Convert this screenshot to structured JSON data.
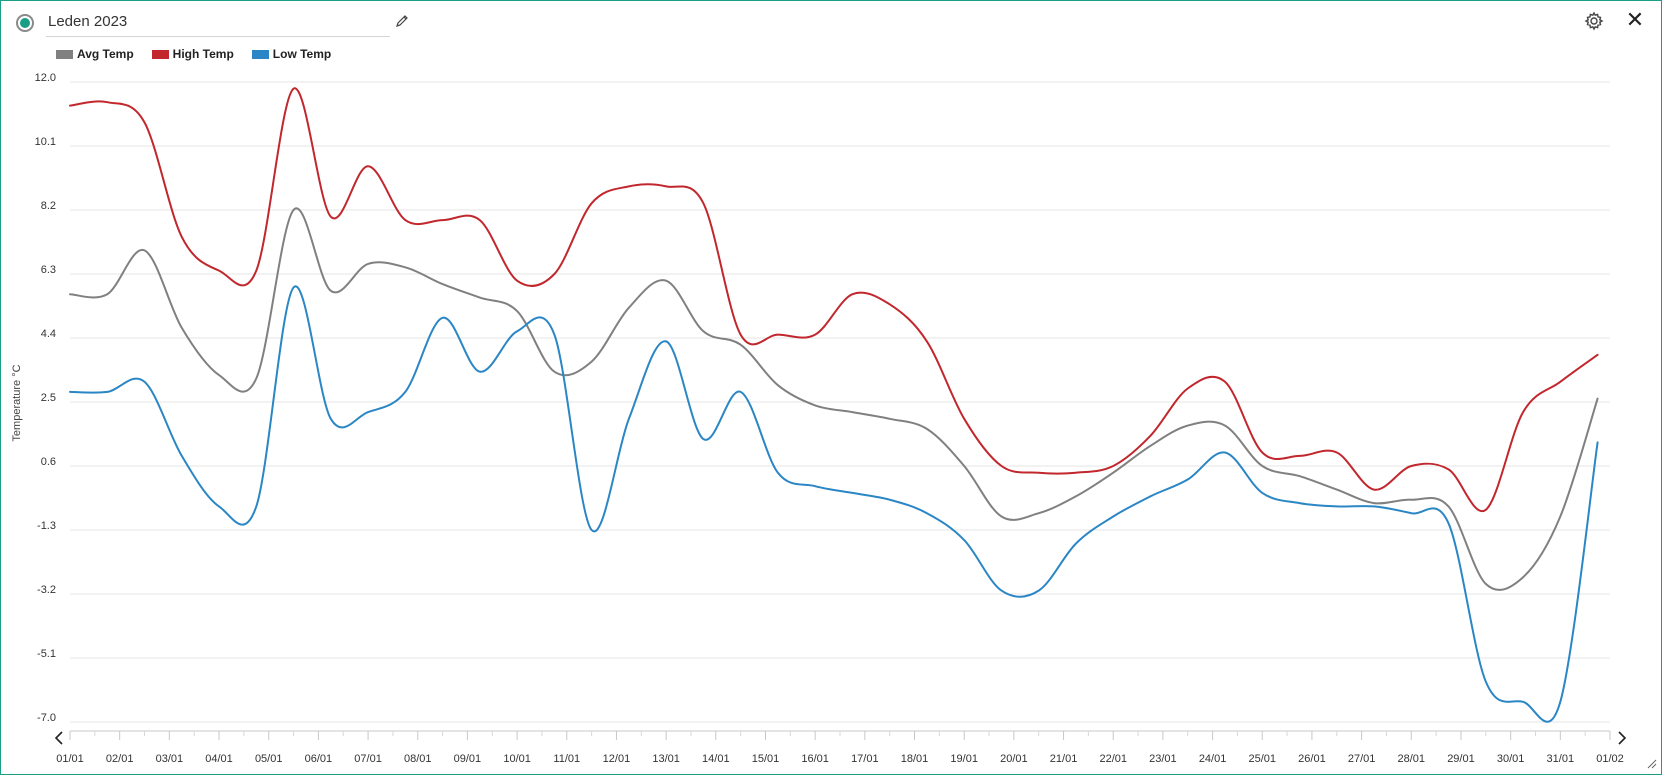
{
  "window": {
    "title": "Leden 2023",
    "status_color": "#1a9e86",
    "icons": [
      "status-dot-icon",
      "pencil-icon",
      "gear-icon",
      "close-icon",
      "chevron-left-icon",
      "chevron-right-icon",
      "resize-handle-icon"
    ],
    "close_glyph": "✕"
  },
  "chart_data": {
    "type": "line",
    "title": "",
    "xlabel": "",
    "ylabel": "Temperature °C",
    "x_tick_labels": [
      "01/01",
      "02/01",
      "03/01",
      "04/01",
      "05/01",
      "06/01",
      "07/01",
      "08/01",
      "09/01",
      "10/01",
      "11/01",
      "12/01",
      "13/01",
      "14/01",
      "15/01",
      "16/01",
      "17/01",
      "18/01",
      "19/01",
      "20/01",
      "21/01",
      "22/01",
      "23/01",
      "24/01",
      "25/01",
      "26/01",
      "27/01",
      "28/01",
      "29/01",
      "30/01",
      "31/01",
      "01/02"
    ],
    "y_ticks": [
      12.0,
      10.1,
      8.2,
      6.3,
      4.4,
      2.5,
      0.6,
      -1.3,
      -3.2,
      -5.1,
      -7.0
    ],
    "y_tick_labels": [
      "12.0",
      "10.1",
      "8.2",
      "6.3",
      "4.4",
      "2.5",
      "0.6",
      "-1.3",
      "-3.2",
      "-5.1",
      "-7.0"
    ],
    "ylim": [
      -7.0,
      12.0
    ],
    "grid": "horizontal",
    "legend_position": "top-left",
    "series": [
      {
        "name": "Avg Temp",
        "color": "#808080",
        "x": [
          "01/01",
          "01/01 18:00",
          "02/01 12:00",
          "03/01 06:00",
          "04/01",
          "04/01 18:00",
          "05/01 12:00",
          "06/01 06:00",
          "07/01",
          "07/01 18:00",
          "08/01 12:00",
          "09/01 06:00",
          "10/01",
          "10/01 18:00",
          "11/01 12:00",
          "12/01 06:00",
          "13/01",
          "13/01 18:00",
          "14/01 12:00",
          "15/01 06:00",
          "16/01",
          "16/01 18:00",
          "17/01 12:00",
          "18/01 06:00",
          "19/01",
          "19/01 18:00",
          "20/01 12:00",
          "21/01 06:00",
          "22/01",
          "22/01 18:00",
          "23/01 12:00",
          "24/01 06:00",
          "25/01",
          "25/01 18:00",
          "26/01 12:00",
          "27/01 06:00",
          "28/01",
          "28/01 18:00",
          "29/01 12:00",
          "30/01 06:00",
          "31/01",
          "31/01 18:00"
        ],
        "y": [
          5.7,
          5.7,
          7.0,
          4.7,
          3.3,
          3.2,
          8.2,
          5.8,
          6.6,
          6.5,
          6.0,
          5.6,
          5.2,
          3.4,
          3.7,
          5.3,
          6.1,
          4.6,
          4.2,
          3.0,
          2.4,
          2.2,
          2.0,
          1.7,
          0.6,
          -0.9,
          -0.8,
          -0.3,
          0.4,
          1.2,
          1.8,
          1.8,
          0.6,
          0.3,
          -0.1,
          -0.5,
          -0.4,
          -0.6,
          -2.9,
          -2.7,
          -0.9,
          2.6
        ]
      },
      {
        "name": "High Temp",
        "color": "#c1272d",
        "x": [
          "01/01",
          "01/01 18:00",
          "02/01 12:00",
          "03/01 06:00",
          "04/01",
          "04/01 18:00",
          "05/01 12:00",
          "06/01 06:00",
          "07/01",
          "07/01 18:00",
          "08/01 12:00",
          "09/01 06:00",
          "10/01",
          "10/01 18:00",
          "11/01 12:00",
          "12/01 06:00",
          "13/01",
          "13/01 18:00",
          "14/01 12:00",
          "15/01 06:00",
          "16/01",
          "16/01 18:00",
          "17/01 12:00",
          "18/01 06:00",
          "19/01",
          "19/01 18:00",
          "20/01 12:00",
          "21/01 06:00",
          "22/01",
          "22/01 18:00",
          "23/01 12:00",
          "24/01 06:00",
          "25/01",
          "25/01 18:00",
          "26/01 12:00",
          "27/01 06:00",
          "28/01",
          "28/01 18:00",
          "29/01 12:00",
          "30/01 06:00",
          "31/01",
          "31/01 18:00"
        ],
        "y": [
          11.3,
          11.4,
          10.8,
          7.4,
          6.4,
          6.4,
          11.8,
          8.0,
          9.5,
          7.9,
          7.9,
          7.9,
          6.1,
          6.3,
          8.4,
          8.9,
          8.9,
          8.4,
          4.5,
          4.5,
          4.5,
          5.7,
          5.4,
          4.3,
          2.0,
          0.6,
          0.4,
          0.4,
          0.6,
          1.5,
          2.9,
          3.1,
          1.0,
          0.9,
          1.0,
          -0.1,
          0.6,
          0.5,
          -0.7,
          2.2,
          3.1,
          3.9
        ]
      },
      {
        "name": "Low Temp",
        "color": "#2a86c4",
        "x": [
          "01/01",
          "01/01 18:00",
          "02/01 12:00",
          "03/01 06:00",
          "04/01",
          "04/01 18:00",
          "05/01 12:00",
          "06/01 06:00",
          "07/01",
          "07/01 18:00",
          "08/01 12:00",
          "09/01 06:00",
          "10/01",
          "10/01 18:00",
          "11/01 12:00",
          "12/01 06:00",
          "13/01",
          "13/01 18:00",
          "14/01 12:00",
          "15/01 06:00",
          "16/01",
          "16/01 18:00",
          "17/01 12:00",
          "18/01 06:00",
          "19/01",
          "19/01 18:00",
          "20/01 12:00",
          "21/01 06:00",
          "22/01",
          "22/01 18:00",
          "23/01 12:00",
          "24/01 06:00",
          "25/01",
          "25/01 18:00",
          "26/01 12:00",
          "27/01 06:00",
          "28/01",
          "28/01 18:00",
          "29/01 12:00",
          "30/01 06:00",
          "31/01",
          "31/01 18:00"
        ],
        "y": [
          2.8,
          2.8,
          3.1,
          0.9,
          -0.6,
          -0.6,
          5.9,
          2.0,
          2.2,
          2.8,
          5.0,
          3.4,
          4.6,
          4.5,
          -1.3,
          2.0,
          4.3,
          1.4,
          2.8,
          0.4,
          0.0,
          -0.2,
          -0.4,
          -0.8,
          -1.6,
          -3.1,
          -3.1,
          -1.7,
          -0.9,
          -0.3,
          0.2,
          1.0,
          -0.2,
          -0.5,
          -0.6,
          -0.6,
          -0.8,
          -1.1,
          -5.8,
          -6.4,
          -6.4,
          1.3
        ]
      }
    ]
  }
}
